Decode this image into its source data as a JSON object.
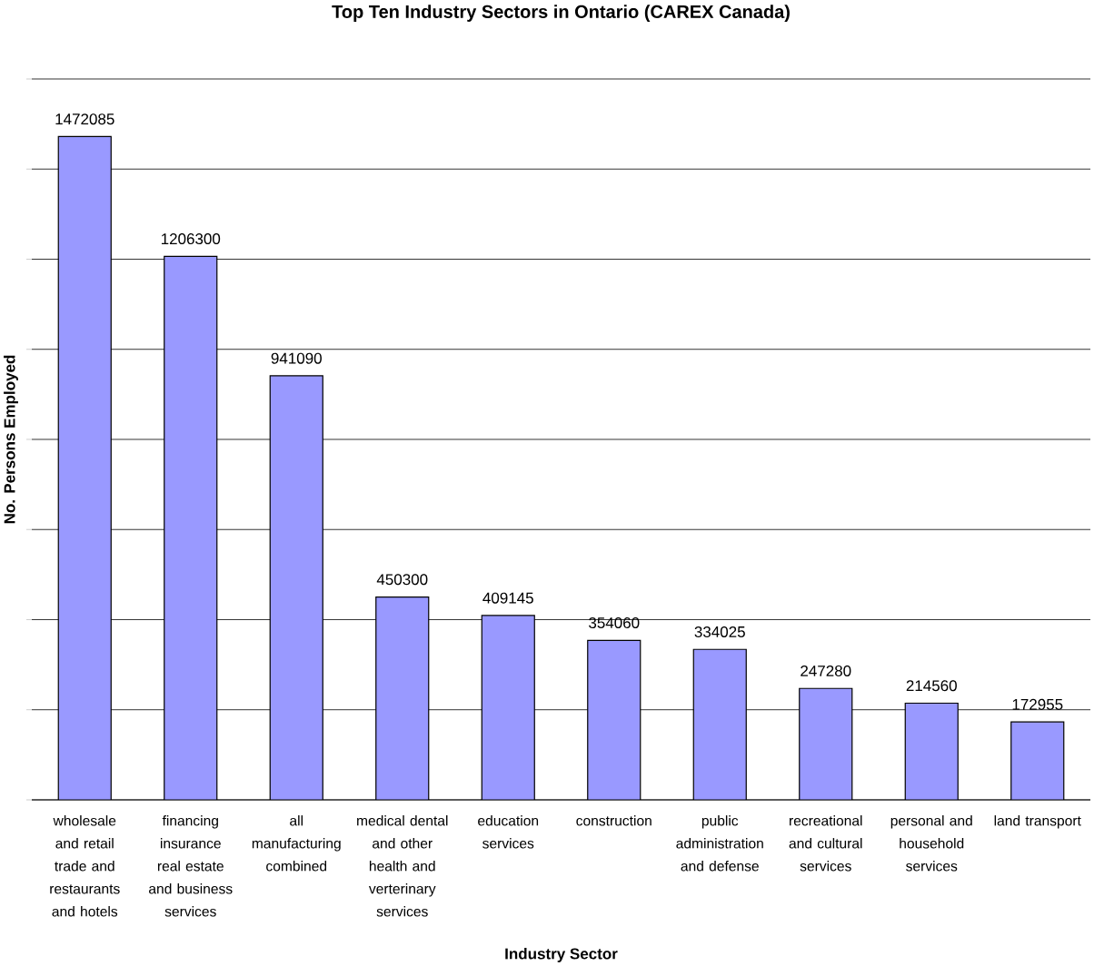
{
  "chart_data": {
    "type": "bar",
    "title": "Top Ten Industry Sectors in Ontario (CAREX Canada)",
    "xlabel": "Industry Sector",
    "ylabel": "No. Persons Employed",
    "categories": [
      "wholesale and retail trade and restaurants and hotels",
      "financing insurance real estate and business services",
      "all manufacturing combined",
      "medical dental and other health and verterinary services",
      "education services",
      "construction",
      "public administration and defense",
      "recreational and cultural services",
      "personal and household services",
      "land transport"
    ],
    "values": [
      1472085,
      1206300,
      941090,
      450300,
      409145,
      354060,
      334025,
      247280,
      214560,
      172955
    ],
    "color": "#9999ff",
    "ylim": [
      0,
      1600000
    ],
    "yticks": [
      {
        "value": 0,
        "label": null
      },
      {
        "value": 200000,
        "label": null
      },
      {
        "value": 400000,
        "label": null
      },
      {
        "value": 600000,
        "label": null
      },
      {
        "value": 800000,
        "label": null
      },
      {
        "value": 1000000,
        "label": null
      },
      {
        "value": 1200000,
        "label": null
      },
      {
        "value": 1400000,
        "label": null
      },
      {
        "value": 1600000,
        "label": null
      }
    ],
    "grid": "y",
    "tick_labels": "x",
    "data_labels": true
  }
}
